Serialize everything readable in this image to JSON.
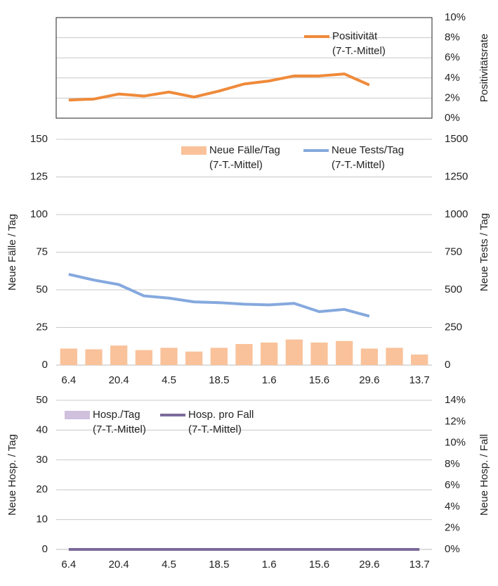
{
  "chart_data": [
    {
      "type": "combo",
      "y2label": "Positivitätsrate",
      "y2lim": [
        0,
        10
      ],
      "y2ticks": [
        {
          "value": 0,
          "label": "0%"
        },
        {
          "value": 2,
          "label": "2%"
        },
        {
          "value": 4,
          "label": "4%"
        },
        {
          "value": 6,
          "label": "6%"
        },
        {
          "value": 8,
          "label": "8%"
        },
        {
          "value": 10,
          "label": "10%"
        }
      ],
      "grid": true,
      "series": [
        {
          "name": [
            "Positivität",
            "(7-T.-Mittel)"
          ],
          "type": "line",
          "axis": "y2",
          "color": "#ef8a3a",
          "values": [
            1.8,
            1.9,
            2.4,
            2.2,
            2.6,
            2.1,
            2.7,
            3.4,
            3.7,
            4.2,
            4.2,
            4.4,
            3.3,
            null,
            null
          ]
        }
      ]
    },
    {
      "type": "combo",
      "ylabel": "Neue Fälle / Tag",
      "y2label": "Neue Tests / Tag",
      "categories": [
        "6.4",
        null,
        "20.4",
        null,
        "4.5",
        null,
        "18.5",
        null,
        "1.6",
        null,
        "15.6",
        null,
        "29.6",
        null,
        "13.7"
      ],
      "ylim": [
        0,
        150
      ],
      "yticks": [
        0,
        25,
        50,
        75,
        100,
        125,
        150
      ],
      "y2lim": [
        0,
        1500
      ],
      "y2ticks": [
        0,
        250,
        500,
        750,
        1000,
        1250,
        1500
      ],
      "grid": true,
      "series": [
        {
          "name": [
            "Neue Fälle/Tag",
            "(7-T.-Mittel)"
          ],
          "type": "bar",
          "axis": "y",
          "color": "#f9c29a",
          "values": [
            11,
            10.5,
            13,
            10,
            11.5,
            9,
            11.5,
            14,
            15,
            17,
            15,
            16,
            11,
            11.5,
            7
          ]
        },
        {
          "name": [
            "Neue Tests/Tag",
            "(7-T.-Mittel)"
          ],
          "type": "line",
          "axis": "y2",
          "color": "#85a9de",
          "values": [
            603,
            565,
            535,
            460,
            445,
            420,
            415,
            405,
            400,
            410,
            355,
            370,
            325,
            null,
            null
          ]
        }
      ]
    },
    {
      "type": "combo",
      "ylabel": "Neue Hosp. / Tag",
      "y2label": "Neue Hosp. / Fall",
      "categories": [
        "6.4",
        null,
        "20.4",
        null,
        "4.5",
        null,
        "18.5",
        null,
        "1.6",
        null,
        "15.6",
        null,
        "29.6",
        null,
        "13.7"
      ],
      "ylim": [
        0,
        50
      ],
      "yticks": [
        0,
        10,
        20,
        30,
        40,
        50
      ],
      "y2lim": [
        0,
        14
      ],
      "y2ticks": [
        {
          "value": 0,
          "label": "0%"
        },
        {
          "value": 2,
          "label": "2%"
        },
        {
          "value": 4,
          "label": "4%"
        },
        {
          "value": 6,
          "label": "6%"
        },
        {
          "value": 8,
          "label": "8%"
        },
        {
          "value": 10,
          "label": "10%"
        },
        {
          "value": 12,
          "label": "12%"
        },
        {
          "value": 14,
          "label": "14%"
        }
      ],
      "grid": true,
      "series": [
        {
          "name": [
            "Hosp./Tag",
            "(7-T.-Mittel)"
          ],
          "type": "bar",
          "axis": "y",
          "color": "#cfc0dd",
          "values": [
            0,
            0,
            0,
            0,
            0,
            0,
            0,
            0,
            0,
            0,
            0,
            0,
            0,
            0,
            0
          ]
        },
        {
          "name": [
            "Hosp. pro Fall",
            "(7-T.-Mittel)"
          ],
          "type": "line",
          "axis": "y2",
          "color": "#7d6b9b",
          "values": [
            0,
            0,
            0,
            0,
            0,
            0,
            0,
            0,
            0,
            0,
            0,
            0,
            0,
            0,
            0
          ]
        }
      ]
    }
  ]
}
